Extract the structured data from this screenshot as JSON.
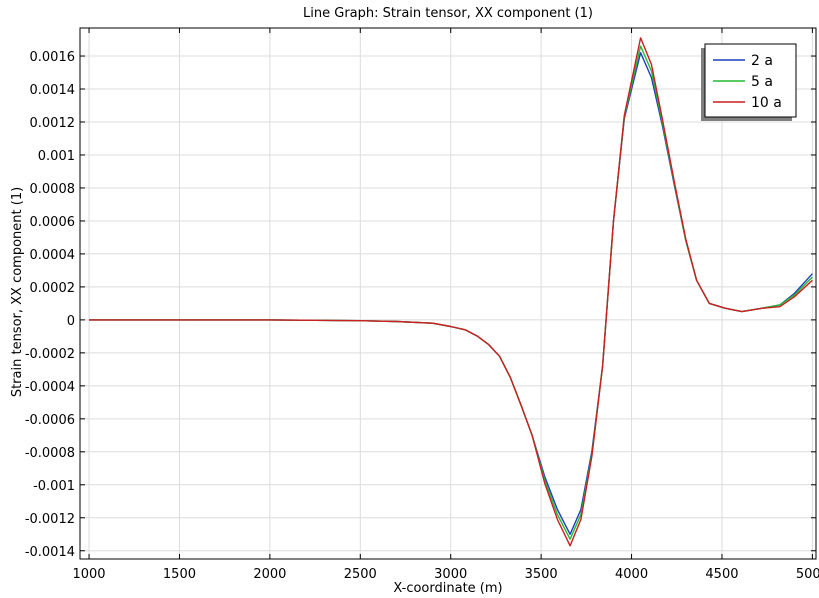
{
  "chart_data": {
    "type": "line",
    "title": "Line Graph: Strain tensor, XX component (1)",
    "xlabel": "X-coordinate (m)",
    "ylabel": "Strain tensor, XX component (1)",
    "xlim": [
      950,
      5020
    ],
    "ylim": [
      -0.00145,
      0.00177
    ],
    "x_ticks": [
      1000,
      1500,
      2000,
      2500,
      3000,
      3500,
      4000,
      4500,
      5000
    ],
    "x_tick_labels": [
      "1000",
      "1500",
      "2000",
      "2500",
      "3000",
      "3500",
      "4000",
      "4500",
      "5000"
    ],
    "y_ticks": [
      0.0016,
      0.0014,
      0.0012,
      0.001,
      0.0008,
      0.0006,
      0.0004,
      0.0002,
      0,
      -0.0002,
      -0.0004,
      -0.0006,
      -0.0008,
      -0.001,
      -0.0012,
      -0.0014
    ],
    "y_tick_labels": [
      "0.0016",
      "0.0014",
      "0.0012",
      "0.001",
      "0.0008",
      "0.0006",
      "0.0004",
      "0.0002",
      "0",
      "-0.0002",
      "-0.0004",
      "-0.0006",
      "-0.0008",
      "-0.001",
      "-0.0012",
      "-0.0014"
    ],
    "grid": true,
    "legend_position": "top-right",
    "series": [
      {
        "name": "2 a",
        "color": "#1f3fbf",
        "x": [
          1000,
          1500,
          2000,
          2500,
          2700,
          2900,
          3000,
          3080,
          3150,
          3210,
          3270,
          3330,
          3390,
          3450,
          3520,
          3590,
          3660,
          3720,
          3780,
          3840,
          3900,
          3960,
          4050,
          4110,
          4170,
          4240,
          4300,
          4360,
          4430,
          4520,
          4610,
          4720,
          4820,
          4900,
          5000
        ],
        "y": [
          0,
          0,
          0,
          -5e-06,
          -1e-05,
          -2e-05,
          -4e-05,
          -6e-05,
          -0.0001,
          -0.00015,
          -0.00022,
          -0.00035,
          -0.00052,
          -0.0007,
          -0.00095,
          -0.00115,
          -0.0013,
          -0.00115,
          -0.0008,
          -0.00028,
          0.0006,
          0.00122,
          0.00162,
          0.00147,
          0.00118,
          0.0008,
          0.00048,
          0.00024,
          0.0001,
          7e-05,
          5e-05,
          7e-05,
          9e-05,
          0.00016,
          0.00028
        ]
      },
      {
        "name": "5 a",
        "color": "#22bb33",
        "x": [
          1000,
          1500,
          2000,
          2500,
          2700,
          2900,
          3000,
          3080,
          3150,
          3210,
          3270,
          3330,
          3390,
          3450,
          3520,
          3590,
          3660,
          3720,
          3780,
          3840,
          3900,
          3960,
          4050,
          4110,
          4170,
          4240,
          4300,
          4360,
          4430,
          4520,
          4610,
          4720,
          4820,
          4900,
          5000
        ],
        "y": [
          0,
          0,
          0,
          -5e-06,
          -1e-05,
          -2e-05,
          -4e-05,
          -6e-05,
          -0.0001,
          -0.00015,
          -0.00022,
          -0.00035,
          -0.00052,
          -0.0007,
          -0.00097,
          -0.00118,
          -0.00133,
          -0.00118,
          -0.00082,
          -0.00028,
          0.0006,
          0.00123,
          0.00166,
          0.00151,
          0.0012,
          0.00081,
          0.00048,
          0.00024,
          0.0001,
          7e-05,
          5e-05,
          7e-05,
          9e-05,
          0.00015,
          0.00026
        ]
      },
      {
        "name": "10 a",
        "color": "#cc1f1f",
        "x": [
          1000,
          1500,
          2000,
          2500,
          2700,
          2900,
          3000,
          3080,
          3150,
          3210,
          3270,
          3330,
          3390,
          3450,
          3520,
          3590,
          3660,
          3720,
          3780,
          3840,
          3900,
          3960,
          4050,
          4110,
          4170,
          4240,
          4300,
          4360,
          4430,
          4520,
          4610,
          4720,
          4820,
          4900,
          5000
        ],
        "y": [
          0,
          0,
          0,
          -5e-06,
          -1e-05,
          -2e-05,
          -4e-05,
          -6e-05,
          -0.0001,
          -0.00015,
          -0.00022,
          -0.00035,
          -0.00052,
          -0.0007,
          -0.00099,
          -0.00121,
          -0.00137,
          -0.00121,
          -0.00083,
          -0.00028,
          0.0006,
          0.00124,
          0.00171,
          0.00155,
          0.00122,
          0.00082,
          0.00049,
          0.00024,
          0.0001,
          7e-05,
          5e-05,
          7e-05,
          8e-05,
          0.00014,
          0.00024
        ]
      }
    ]
  }
}
